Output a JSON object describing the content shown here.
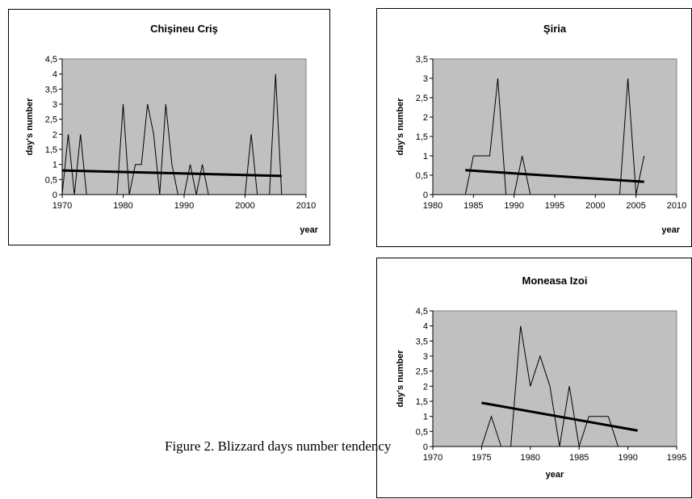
{
  "caption": "Figure 2. Blizzard days number tendency",
  "chart_data": [
    {
      "id": "chisineu",
      "type": "line",
      "title": "Chişineu Criş",
      "xlabel": "year",
      "ylabel": "day's number",
      "xlim": [
        1970,
        2010
      ],
      "ylim": [
        0,
        4.5
      ],
      "xticks": [
        1970,
        1980,
        1990,
        2000,
        2010
      ],
      "yticks": [
        0,
        0.5,
        1,
        1.5,
        2,
        2.5,
        3,
        3.5,
        4,
        4.5
      ],
      "ytick_labels": [
        "0",
        "0,5",
        "1",
        "1,5",
        "2",
        "2,5",
        "3",
        "3,5",
        "4",
        "4,5"
      ],
      "grid": false,
      "legend": "none",
      "series": [
        {
          "x": [
            1970,
            1971,
            1972,
            1973,
            1974,
            1975,
            1976,
            1977,
            1978,
            1979,
            1980,
            1981,
            1982,
            1983,
            1984,
            1985,
            1986,
            1987,
            1988,
            1989,
            1990,
            1991,
            1992,
            1993,
            1994,
            1995,
            1996,
            1997,
            1998,
            1999,
            2000,
            2001,
            2002,
            2003,
            2004,
            2005,
            2006
          ],
          "y": [
            0,
            2,
            0,
            2,
            0,
            0,
            0,
            0,
            0,
            0,
            3,
            0,
            1,
            1,
            3,
            2,
            0,
            3,
            1,
            0,
            0,
            1,
            0,
            1,
            0,
            0,
            0,
            0,
            0,
            0,
            0,
            2,
            0,
            0,
            0,
            4,
            0
          ]
        }
      ],
      "trend": {
        "x": [
          1970,
          2006
        ],
        "y": [
          0.8,
          0.62
        ]
      }
    },
    {
      "id": "siria",
      "type": "line",
      "title": "Şiria",
      "xlabel": "year",
      "ylabel": "day's number",
      "xlim": [
        1980,
        2010
      ],
      "ylim": [
        0,
        3.5
      ],
      "xticks": [
        1980,
        1985,
        1990,
        1995,
        2000,
        2005,
        2010
      ],
      "yticks": [
        0,
        0.5,
        1,
        1.5,
        2,
        2.5,
        3,
        3.5
      ],
      "ytick_labels": [
        "0",
        "0,5",
        "1",
        "1,5",
        "2",
        "2,5",
        "3",
        "3,5"
      ],
      "grid": false,
      "legend": "none",
      "series": [
        {
          "x": [
            1984,
            1985,
            1986,
            1987,
            1988,
            1989,
            1990,
            1991,
            1992,
            1993,
            1994,
            1995,
            1996,
            1997,
            1998,
            1999,
            2000,
            2001,
            2002,
            2003,
            2004,
            2005,
            2006
          ],
          "y": [
            0,
            1,
            1,
            1,
            3,
            0,
            0,
            1,
            0,
            0,
            0,
            0,
            0,
            0,
            0,
            0,
            0,
            0,
            0,
            0,
            3,
            0,
            1
          ]
        }
      ],
      "trend": {
        "x": [
          1984,
          2006
        ],
        "y": [
          0.63,
          0.33
        ]
      }
    },
    {
      "id": "moneasa",
      "type": "line",
      "title": "Moneasa Izoi",
      "xlabel": "year",
      "ylabel": "day's number",
      "xlim": [
        1970,
        1995
      ],
      "ylim": [
        0,
        4.5
      ],
      "xticks": [
        1970,
        1975,
        1980,
        1985,
        1990,
        1995
      ],
      "yticks": [
        0,
        0.5,
        1,
        1.5,
        2,
        2.5,
        3,
        3.5,
        4,
        4.5
      ],
      "ytick_labels": [
        "0",
        "0,5",
        "1",
        "1,5",
        "2",
        "2,5",
        "3",
        "3,5",
        "4",
        "4,5"
      ],
      "grid": false,
      "legend": "none",
      "series": [
        {
          "x": [
            1975,
            1976,
            1977,
            1978,
            1979,
            1980,
            1981,
            1982,
            1983,
            1984,
            1985,
            1986,
            1987,
            1988,
            1989,
            1990,
            1991
          ],
          "y": [
            0,
            1,
            0,
            0,
            4,
            2,
            3,
            2,
            0,
            2,
            0,
            1,
            1,
            1,
            0,
            0,
            0
          ]
        }
      ],
      "trend": {
        "x": [
          1975,
          1991
        ],
        "y": [
          1.45,
          0.53
        ]
      }
    }
  ]
}
